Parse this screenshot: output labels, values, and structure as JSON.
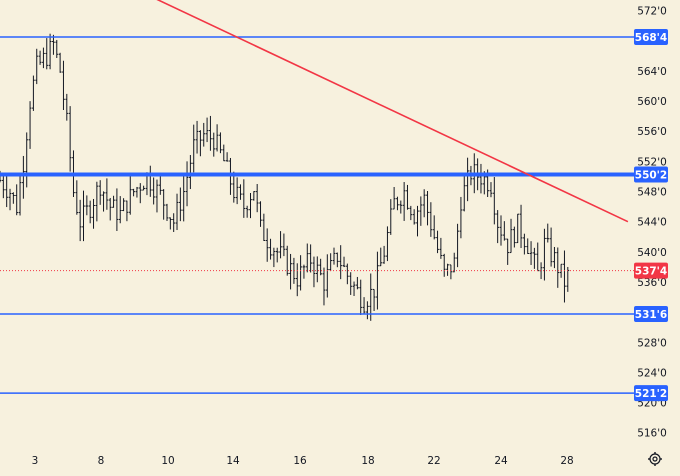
{
  "chart_data": {
    "type": "ohlc",
    "y_axis": {
      "ticks": [
        {
          "value": 572.0,
          "label": "572'0"
        },
        {
          "value": 564.0,
          "label": "564'0"
        },
        {
          "value": 560.0,
          "label": "560'0"
        },
        {
          "value": 556.0,
          "label": "556'0"
        },
        {
          "value": 552.0,
          "label": "552'0"
        },
        {
          "value": 548.0,
          "label": "548'0"
        },
        {
          "value": 544.0,
          "label": "544'0"
        },
        {
          "value": 540.0,
          "label": "540'0"
        },
        {
          "value": 536.0,
          "label": "536'0"
        },
        {
          "value": 528.0,
          "label": "528'0"
        },
        {
          "value": 524.0,
          "label": "524'0"
        },
        {
          "value": 520.0,
          "label": "520'0"
        },
        {
          "value": 516.0,
          "label": "516'0"
        }
      ],
      "range": [
        513.5,
        573.5
      ]
    },
    "x_axis": {
      "ticks": [
        "3",
        "8",
        "10",
        "14",
        "16",
        "18",
        "22",
        "24",
        "28"
      ],
      "bar_count": 171
    },
    "horizontal_levels": [
      {
        "value": 568.5,
        "label": "568'4",
        "color": "#2962ff",
        "emphasis": "normal"
      },
      {
        "value": 550.25,
        "label": "550'2",
        "color": "#2962ff",
        "emphasis": "thick"
      },
      {
        "value": 531.75,
        "label": "531'6",
        "color": "#2962ff",
        "emphasis": "normal"
      },
      {
        "value": 521.25,
        "label": "521'2",
        "color": "#2962ff",
        "emphasis": "normal"
      }
    ],
    "trendline": {
      "from": {
        "bar": 35,
        "value": 576.0
      },
      "to": {
        "bar": 188,
        "value": 544.0
      },
      "color": "#f23645"
    },
    "last_price": {
      "value": 537.5,
      "label": "537'4",
      "color": "#f23645"
    },
    "series_anchors": [
      [
        0,
        549.5
      ],
      [
        3,
        548.0
      ],
      [
        5,
        546.0
      ],
      [
        7,
        552.0
      ],
      [
        9,
        560.0
      ],
      [
        11,
        564.5
      ],
      [
        14,
        566.0
      ],
      [
        16,
        567.5
      ],
      [
        18,
        564.0
      ],
      [
        20,
        557.0
      ],
      [
        22,
        548.0
      ],
      [
        24,
        544.0
      ],
      [
        27,
        546.0
      ],
      [
        30,
        549.0
      ],
      [
        33,
        546.0
      ],
      [
        36,
        545.0
      ],
      [
        40,
        548.0
      ],
      [
        44,
        550.0
      ],
      [
        48,
        547.5
      ],
      [
        52,
        544.0
      ],
      [
        55,
        548.0
      ],
      [
        58,
        554.0
      ],
      [
        61,
        555.5
      ],
      [
        64,
        555.0
      ],
      [
        67,
        552.0
      ],
      [
        70,
        548.0
      ],
      [
        73,
        546.0
      ],
      [
        76,
        548.5
      ],
      [
        78,
        543.0
      ],
      [
        81,
        541.0
      ],
      [
        85,
        539.0
      ],
      [
        89,
        536.5
      ],
      [
        93,
        539.0
      ],
      [
        97,
        536.0
      ],
      [
        101,
        539.5
      ],
      [
        105,
        536.0
      ],
      [
        109,
        533.5
      ],
      [
        112,
        535.0
      ],
      [
        115,
        540.0
      ],
      [
        118,
        546.5
      ],
      [
        121,
        548.0
      ],
      [
        124,
        545.0
      ],
      [
        127,
        547.0
      ],
      [
        130,
        542.0
      ],
      [
        133,
        537.0
      ],
      [
        136,
        538.5
      ],
      [
        138,
        547.0
      ],
      [
        141,
        550.5
      ],
      [
        144,
        550.0
      ],
      [
        147,
        549.0
      ],
      [
        149,
        544.0
      ],
      [
        152,
        541.0
      ],
      [
        155,
        543.5
      ],
      [
        158,
        541.0
      ],
      [
        161,
        537.0
      ],
      [
        163,
        541.0
      ],
      [
        166,
        539.0
      ],
      [
        169,
        536.0
      ],
      [
        171,
        537.5
      ]
    ]
  },
  "ui": {
    "settings_icon": "gear-icon"
  }
}
